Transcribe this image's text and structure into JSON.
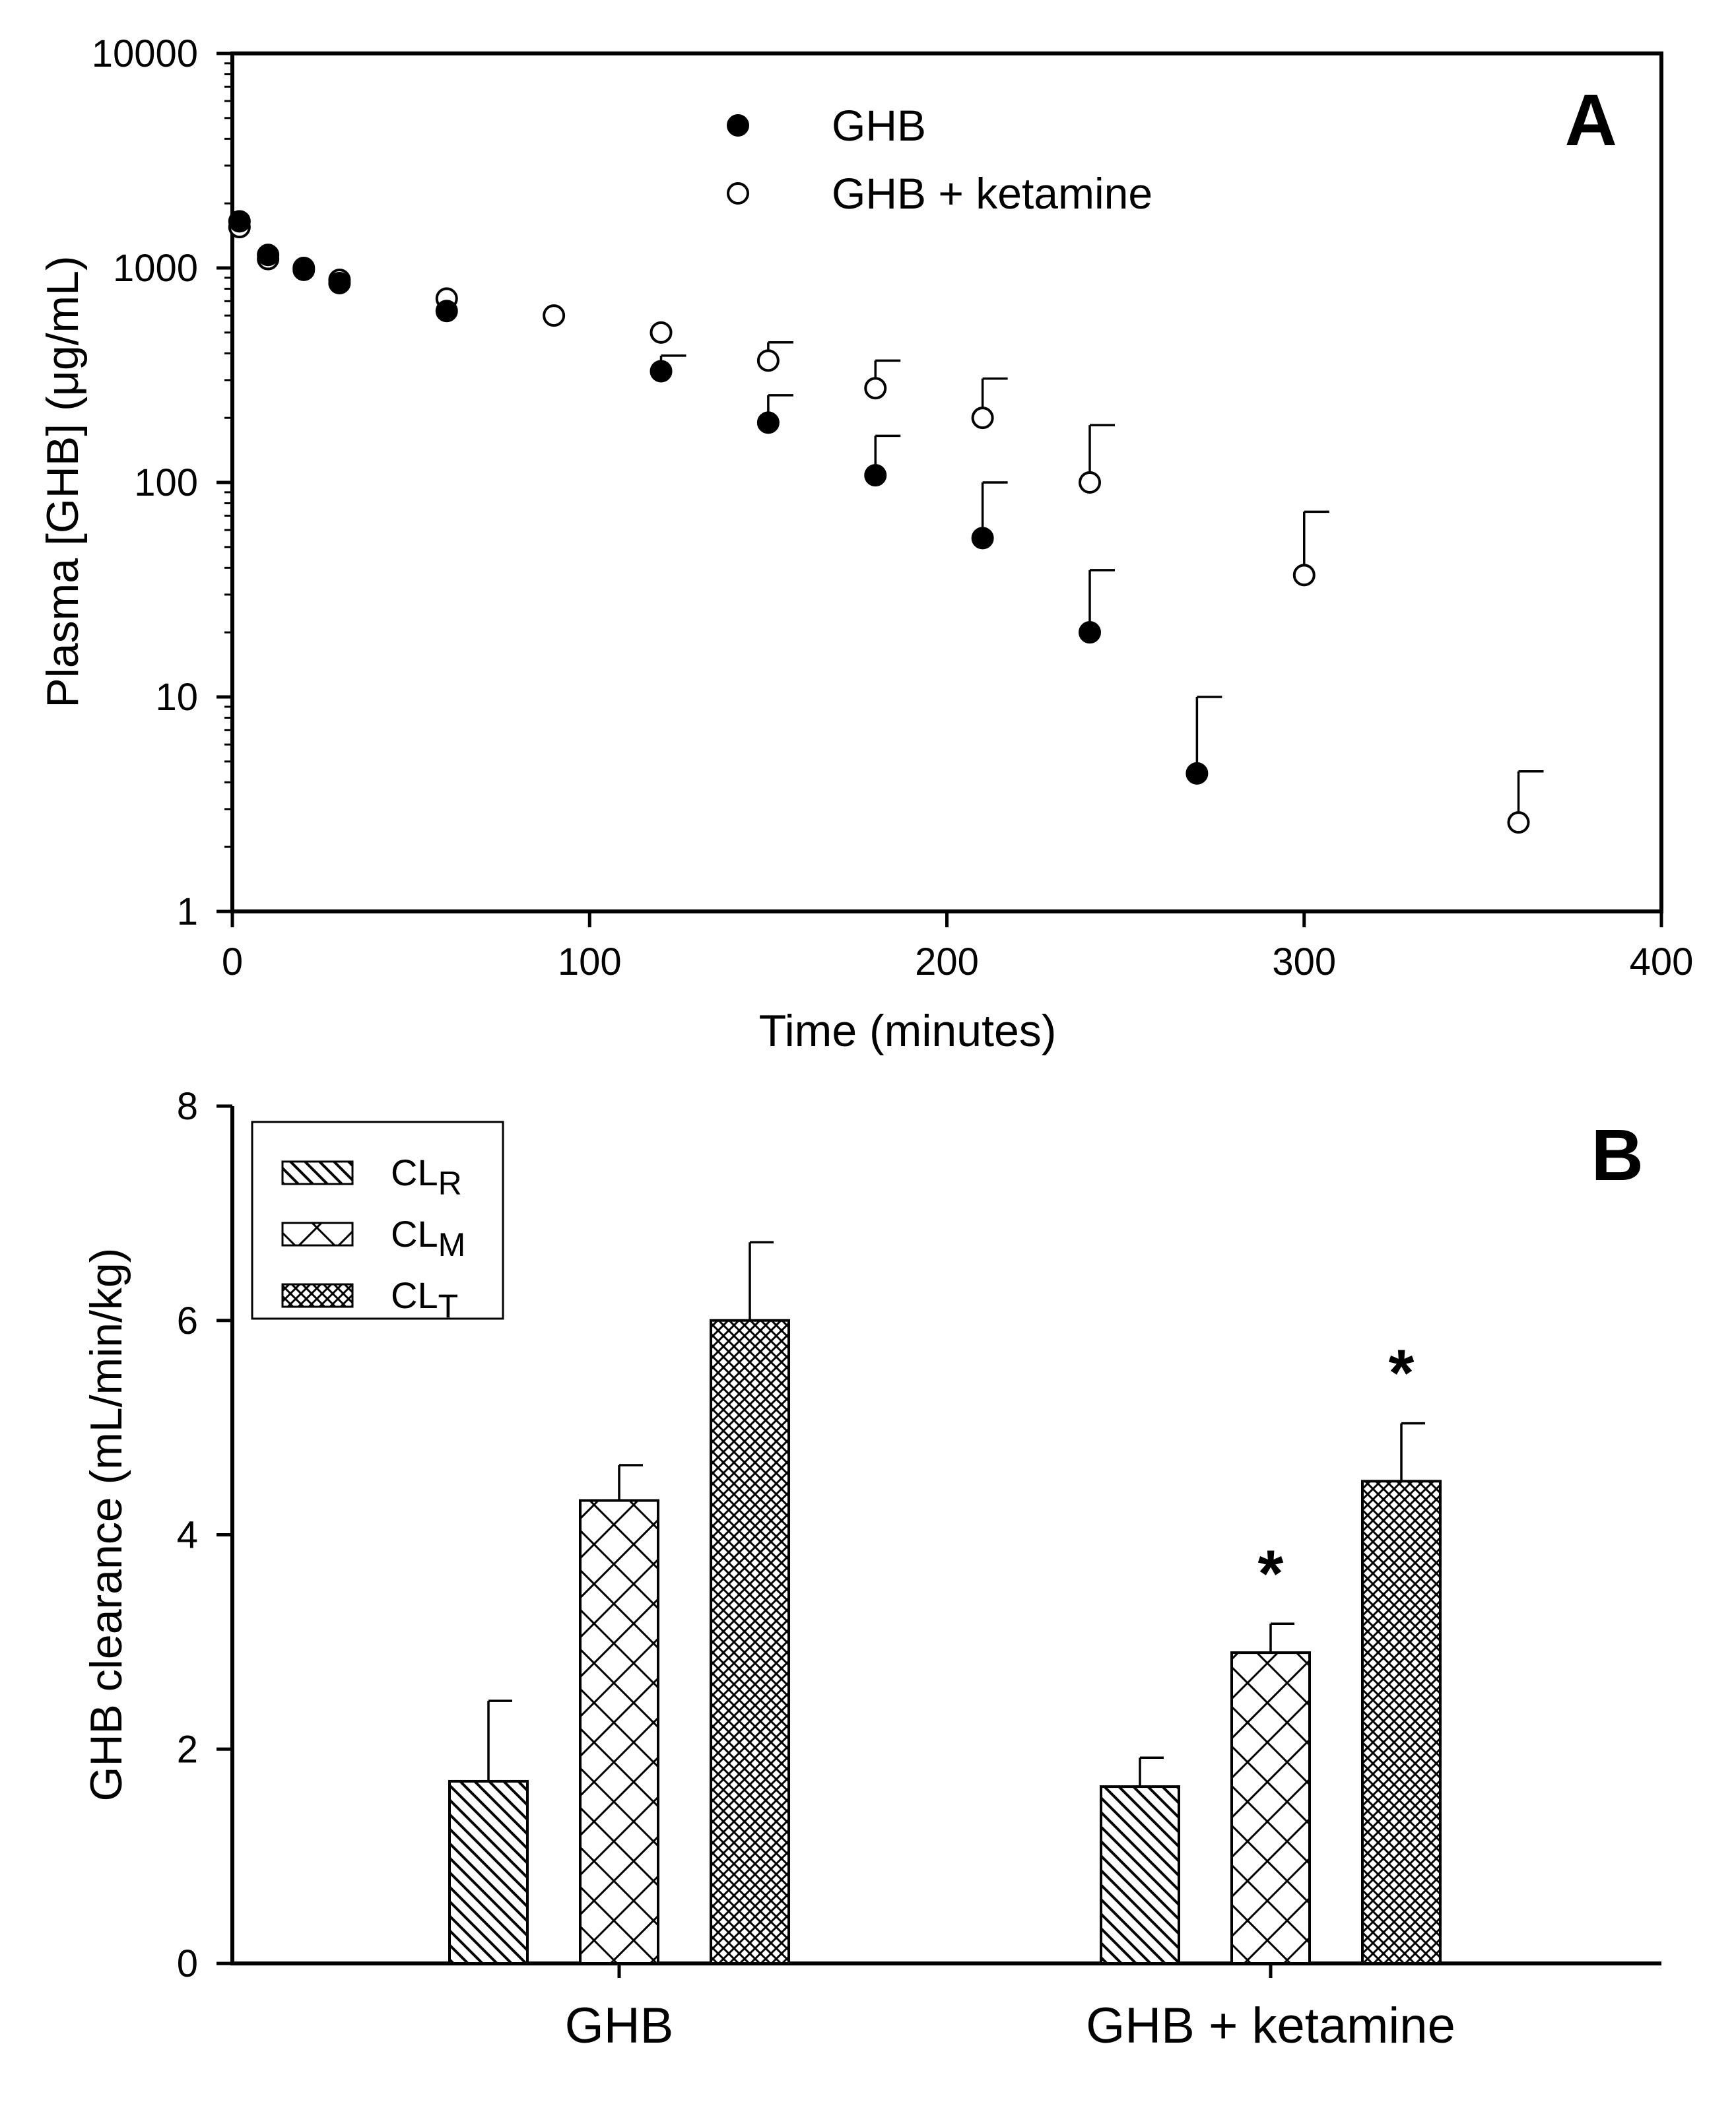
{
  "chart_data": [
    {
      "panel": "A",
      "type": "scatter",
      "title": "A",
      "xlabel": "Time (minutes)",
      "ylabel": "Plasma [GHB] (μg/mL)",
      "xlim": [
        0,
        400
      ],
      "ylim": [
        1,
        10000
      ],
      "yscale": "log",
      "xticks": [
        "0",
        "100",
        "200",
        "300",
        "400"
      ],
      "yticks": [
        "1",
        "10",
        "100",
        "1000",
        "10000"
      ],
      "legend_position": "top-center",
      "series": [
        {
          "name": "GHB",
          "marker": "filled-circle",
          "x": [
            2,
            10,
            20,
            30,
            60,
            120,
            150,
            180,
            210,
            240,
            270
          ],
          "y": [
            1650,
            1150,
            1000,
            850,
            630,
            330,
            190,
            108,
            55,
            20,
            4.4
          ],
          "error_upper": [
            1720,
            1200,
            1050,
            900,
            660,
            390,
            255,
            165,
            100,
            39,
            10
          ]
        },
        {
          "name": "GHB + ketamine",
          "marker": "open-circle",
          "x": [
            2,
            10,
            20,
            30,
            60,
            90,
            120,
            150,
            180,
            210,
            240,
            300,
            360
          ],
          "y": [
            1550,
            1100,
            980,
            880,
            720,
            600,
            500,
            370,
            275,
            200,
            100,
            37,
            2.6
          ],
          "error_upper": [
            1650,
            1200,
            1050,
            950,
            760,
            640,
            540,
            450,
            370,
            305,
            185,
            73,
            4.5
          ]
        }
      ]
    },
    {
      "panel": "B",
      "type": "bar",
      "title": "B",
      "xlabel": "",
      "ylabel": "GHB clearance (mL/min/kg)",
      "ylim": [
        0,
        8
      ],
      "yticks": [
        "0",
        "2",
        "4",
        "6",
        "8"
      ],
      "categories": [
        "GHB",
        "GHB + ketamine"
      ],
      "legend_position": "top-left",
      "series": [
        {
          "name": "CL",
          "subscript": "R",
          "pattern": "diagonal",
          "values": [
            1.7,
            1.65
          ],
          "error_upper": [
            2.45,
            1.92
          ],
          "significant": [
            false,
            false
          ]
        },
        {
          "name": "CL",
          "subscript": "M",
          "pattern": "crosshatch",
          "values": [
            4.32,
            2.9
          ],
          "error_upper": [
            4.65,
            3.17
          ],
          "significant": [
            false,
            true
          ]
        },
        {
          "name": "CL",
          "subscript": "T",
          "pattern": "dense-crosshatch",
          "values": [
            6.0,
            4.5
          ],
          "error_upper": [
            6.73,
            5.04
          ],
          "significant": [
            false,
            true
          ]
        }
      ],
      "significance_marker": "*"
    }
  ]
}
